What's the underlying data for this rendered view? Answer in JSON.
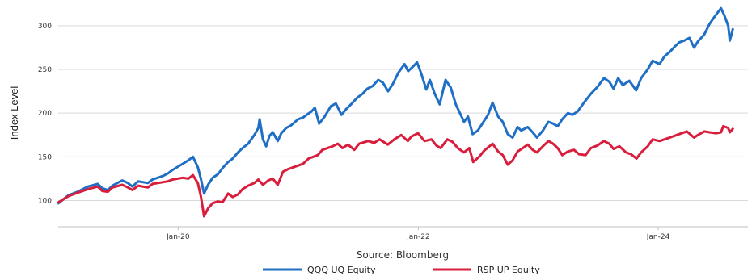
{
  "chart_data": {
    "type": "line",
    "title": "",
    "xlabel": "",
    "ylabel": "Index Level",
    "source": "Source: Bloomberg",
    "ylim": [
      70,
      322
    ],
    "yticks": [
      100,
      150,
      200,
      250,
      300
    ],
    "xlim": [
      "2019-01-01",
      "2024-09-30"
    ],
    "xticks": [
      {
        "label": "Jan-20",
        "date": "2020-01-01"
      },
      {
        "label": "Jan-22",
        "date": "2022-01-01"
      },
      {
        "label": "Jan-24",
        "date": "2024-01-01"
      }
    ],
    "grid": "horizontal",
    "legend_position": "bottom",
    "series": [
      {
        "name": "QQQ UQ Equity",
        "color": "#1f6fc5",
        "points": [
          [
            "2019-01-02",
            97
          ],
          [
            "2019-02-01",
            106
          ],
          [
            "2019-03-01",
            110
          ],
          [
            "2019-04-01",
            116
          ],
          [
            "2019-05-01",
            119
          ],
          [
            "2019-05-15",
            114
          ],
          [
            "2019-06-01",
            112
          ],
          [
            "2019-06-15",
            117
          ],
          [
            "2019-07-15",
            123
          ],
          [
            "2019-08-01",
            120
          ],
          [
            "2019-08-15",
            116
          ],
          [
            "2019-09-01",
            122
          ],
          [
            "2019-10-01",
            120
          ],
          [
            "2019-10-15",
            124
          ],
          [
            "2019-11-15",
            128
          ],
          [
            "2019-12-01",
            131
          ],
          [
            "2019-12-15",
            135
          ],
          [
            "2020-01-15",
            142
          ],
          [
            "2020-02-01",
            146
          ],
          [
            "2020-02-15",
            150
          ],
          [
            "2020-03-01",
            138
          ],
          [
            "2020-03-10",
            125
          ],
          [
            "2020-03-20",
            108
          ],
          [
            "2020-04-01",
            118
          ],
          [
            "2020-04-15",
            126
          ],
          [
            "2020-05-01",
            130
          ],
          [
            "2020-05-15",
            137
          ],
          [
            "2020-06-01",
            144
          ],
          [
            "2020-06-15",
            148
          ],
          [
            "2020-07-01",
            155
          ],
          [
            "2020-07-15",
            160
          ],
          [
            "2020-08-01",
            165
          ],
          [
            "2020-08-20",
            175
          ],
          [
            "2020-09-01",
            183
          ],
          [
            "2020-09-05",
            193
          ],
          [
            "2020-09-15",
            170
          ],
          [
            "2020-09-25",
            162
          ],
          [
            "2020-10-05",
            174
          ],
          [
            "2020-10-15",
            178
          ],
          [
            "2020-10-30",
            168
          ],
          [
            "2020-11-10",
            177
          ],
          [
            "2020-11-25",
            183
          ],
          [
            "2020-12-10",
            186
          ],
          [
            "2020-12-31",
            193
          ],
          [
            "2021-01-15",
            195
          ],
          [
            "2021-02-10",
            202
          ],
          [
            "2021-02-20",
            206
          ],
          [
            "2021-03-05",
            188
          ],
          [
            "2021-03-20",
            195
          ],
          [
            "2021-04-10",
            208
          ],
          [
            "2021-04-25",
            211
          ],
          [
            "2021-05-12",
            198
          ],
          [
            "2021-05-25",
            204
          ],
          [
            "2021-06-10",
            210
          ],
          [
            "2021-06-30",
            218
          ],
          [
            "2021-07-15",
            222
          ],
          [
            "2021-07-30",
            228
          ],
          [
            "2021-08-15",
            231
          ],
          [
            "2021-09-01",
            238
          ],
          [
            "2021-09-15",
            235
          ],
          [
            "2021-10-01",
            225
          ],
          [
            "2021-10-15",
            233
          ],
          [
            "2021-11-01",
            246
          ],
          [
            "2021-11-20",
            256
          ],
          [
            "2021-12-01",
            248
          ],
          [
            "2021-12-15",
            253
          ],
          [
            "2021-12-28",
            258
          ],
          [
            "2022-01-10",
            245
          ],
          [
            "2022-01-25",
            227
          ],
          [
            "2022-02-05",
            238
          ],
          [
            "2022-02-20",
            222
          ],
          [
            "2022-03-07",
            210
          ],
          [
            "2022-03-25",
            238
          ],
          [
            "2022-04-10",
            229
          ],
          [
            "2022-04-25",
            210
          ],
          [
            "2022-05-10",
            198
          ],
          [
            "2022-05-20",
            190
          ],
          [
            "2022-06-01",
            196
          ],
          [
            "2022-06-15",
            176
          ],
          [
            "2022-07-01",
            180
          ],
          [
            "2022-07-15",
            188
          ],
          [
            "2022-08-01",
            198
          ],
          [
            "2022-08-15",
            212
          ],
          [
            "2022-09-01",
            196
          ],
          [
            "2022-09-15",
            190
          ],
          [
            "2022-09-30",
            176
          ],
          [
            "2022-10-15",
            172
          ],
          [
            "2022-10-30",
            184
          ],
          [
            "2022-11-10",
            180
          ],
          [
            "2022-11-30",
            184
          ],
          [
            "2022-12-15",
            178
          ],
          [
            "2022-12-28",
            172
          ],
          [
            "2023-01-15",
            180
          ],
          [
            "2023-02-01",
            190
          ],
          [
            "2023-02-15",
            188
          ],
          [
            "2023-03-01",
            185
          ],
          [
            "2023-03-15",
            193
          ],
          [
            "2023-04-01",
            200
          ],
          [
            "2023-04-15",
            198
          ],
          [
            "2023-05-01",
            202
          ],
          [
            "2023-05-20",
            212
          ],
          [
            "2023-06-10",
            222
          ],
          [
            "2023-06-30",
            230
          ],
          [
            "2023-07-20",
            240
          ],
          [
            "2023-08-05",
            236
          ],
          [
            "2023-08-18",
            228
          ],
          [
            "2023-09-01",
            240
          ],
          [
            "2023-09-15",
            232
          ],
          [
            "2023-10-05",
            237
          ],
          [
            "2023-10-26",
            226
          ],
          [
            "2023-11-10",
            240
          ],
          [
            "2023-11-30",
            250
          ],
          [
            "2023-12-15",
            260
          ],
          [
            "2024-01-05",
            256
          ],
          [
            "2024-01-20",
            265
          ],
          [
            "2024-02-05",
            270
          ],
          [
            "2024-02-20",
            276
          ],
          [
            "2024-03-05",
            281
          ],
          [
            "2024-03-20",
            283
          ],
          [
            "2024-04-05",
            286
          ],
          [
            "2024-04-19",
            275
          ],
          [
            "2024-05-01",
            282
          ],
          [
            "2024-05-20",
            290
          ],
          [
            "2024-06-05",
            302
          ],
          [
            "2024-06-20",
            310
          ],
          [
            "2024-07-10",
            320
          ],
          [
            "2024-07-20",
            312
          ],
          [
            "2024-08-01",
            300
          ],
          [
            "2024-08-06",
            283
          ],
          [
            "2024-08-15",
            296
          ]
        ]
      },
      {
        "name": "RSP UP Equity",
        "color": "#d81e3c",
        "points": [
          [
            "2019-01-02",
            98
          ],
          [
            "2019-02-01",
            105
          ],
          [
            "2019-03-01",
            109
          ],
          [
            "2019-04-01",
            113
          ],
          [
            "2019-05-01",
            116
          ],
          [
            "2019-05-15",
            111
          ],
          [
            "2019-06-01",
            110
          ],
          [
            "2019-06-15",
            115
          ],
          [
            "2019-07-15",
            118
          ],
          [
            "2019-08-01",
            115
          ],
          [
            "2019-08-15",
            112
          ],
          [
            "2019-09-01",
            117
          ],
          [
            "2019-10-01",
            115
          ],
          [
            "2019-10-15",
            119
          ],
          [
            "2019-11-15",
            121
          ],
          [
            "2019-12-01",
            122
          ],
          [
            "2019-12-15",
            124
          ],
          [
            "2020-01-15",
            126
          ],
          [
            "2020-02-01",
            125
          ],
          [
            "2020-02-15",
            129
          ],
          [
            "2020-03-01",
            120
          ],
          [
            "2020-03-10",
            105
          ],
          [
            "2020-03-20",
            82
          ],
          [
            "2020-04-01",
            91
          ],
          [
            "2020-04-15",
            97
          ],
          [
            "2020-05-01",
            99
          ],
          [
            "2020-05-15",
            98
          ],
          [
            "2020-06-01",
            108
          ],
          [
            "2020-06-15",
            104
          ],
          [
            "2020-07-01",
            107
          ],
          [
            "2020-07-15",
            113
          ],
          [
            "2020-08-01",
            117
          ],
          [
            "2020-08-20",
            120
          ],
          [
            "2020-09-01",
            124
          ],
          [
            "2020-09-15",
            118
          ],
          [
            "2020-10-01",
            123
          ],
          [
            "2020-10-15",
            125
          ],
          [
            "2020-10-30",
            118
          ],
          [
            "2020-11-15",
            133
          ],
          [
            "2020-12-01",
            136
          ],
          [
            "2020-12-31",
            140
          ],
          [
            "2021-01-15",
            142
          ],
          [
            "2021-02-01",
            148
          ],
          [
            "2021-03-01",
            152
          ],
          [
            "2021-03-15",
            158
          ],
          [
            "2021-04-15",
            162
          ],
          [
            "2021-05-01",
            165
          ],
          [
            "2021-05-15",
            160
          ],
          [
            "2021-06-01",
            164
          ],
          [
            "2021-06-20",
            158
          ],
          [
            "2021-07-05",
            165
          ],
          [
            "2021-08-01",
            168
          ],
          [
            "2021-08-20",
            166
          ],
          [
            "2021-09-05",
            170
          ],
          [
            "2021-09-30",
            164
          ],
          [
            "2021-10-20",
            170
          ],
          [
            "2021-11-10",
            175
          ],
          [
            "2021-11-30",
            168
          ],
          [
            "2021-12-10",
            173
          ],
          [
            "2021-12-31",
            177
          ],
          [
            "2022-01-20",
            168
          ],
          [
            "2022-02-10",
            170
          ],
          [
            "2022-02-25",
            163
          ],
          [
            "2022-03-10",
            160
          ],
          [
            "2022-03-30",
            170
          ],
          [
            "2022-04-15",
            167
          ],
          [
            "2022-05-01",
            160
          ],
          [
            "2022-05-20",
            155
          ],
          [
            "2022-06-05",
            160
          ],
          [
            "2022-06-17",
            144
          ],
          [
            "2022-07-05",
            150
          ],
          [
            "2022-07-20",
            157
          ],
          [
            "2022-08-15",
            165
          ],
          [
            "2022-09-01",
            156
          ],
          [
            "2022-09-15",
            152
          ],
          [
            "2022-09-30",
            141
          ],
          [
            "2022-10-15",
            146
          ],
          [
            "2022-10-30",
            156
          ],
          [
            "2022-11-15",
            160
          ],
          [
            "2022-11-30",
            164
          ],
          [
            "2022-12-15",
            158
          ],
          [
            "2022-12-28",
            155
          ],
          [
            "2023-01-15",
            162
          ],
          [
            "2023-02-01",
            168
          ],
          [
            "2023-02-15",
            165
          ],
          [
            "2023-03-01",
            160
          ],
          [
            "2023-03-15",
            152
          ],
          [
            "2023-04-01",
            156
          ],
          [
            "2023-04-20",
            158
          ],
          [
            "2023-05-05",
            153
          ],
          [
            "2023-05-25",
            152
          ],
          [
            "2023-06-10",
            160
          ],
          [
            "2023-06-30",
            163
          ],
          [
            "2023-07-20",
            168
          ],
          [
            "2023-08-05",
            165
          ],
          [
            "2023-08-18",
            159
          ],
          [
            "2023-09-05",
            162
          ],
          [
            "2023-09-25",
            155
          ],
          [
            "2023-10-10",
            153
          ],
          [
            "2023-10-27",
            148
          ],
          [
            "2023-11-10",
            155
          ],
          [
            "2023-11-30",
            162
          ],
          [
            "2023-12-15",
            170
          ],
          [
            "2024-01-05",
            168
          ],
          [
            "2024-01-20",
            170
          ],
          [
            "2024-02-05",
            172
          ],
          [
            "2024-02-20",
            174
          ],
          [
            "2024-03-05",
            176
          ],
          [
            "2024-03-28",
            179
          ],
          [
            "2024-04-19",
            172
          ],
          [
            "2024-05-01",
            175
          ],
          [
            "2024-05-20",
            179
          ],
          [
            "2024-06-05",
            178
          ],
          [
            "2024-06-25",
            177
          ],
          [
            "2024-07-10",
            178
          ],
          [
            "2024-07-17",
            185
          ],
          [
            "2024-08-01",
            183
          ],
          [
            "2024-08-06",
            178
          ],
          [
            "2024-08-15",
            182
          ]
        ]
      }
    ]
  }
}
